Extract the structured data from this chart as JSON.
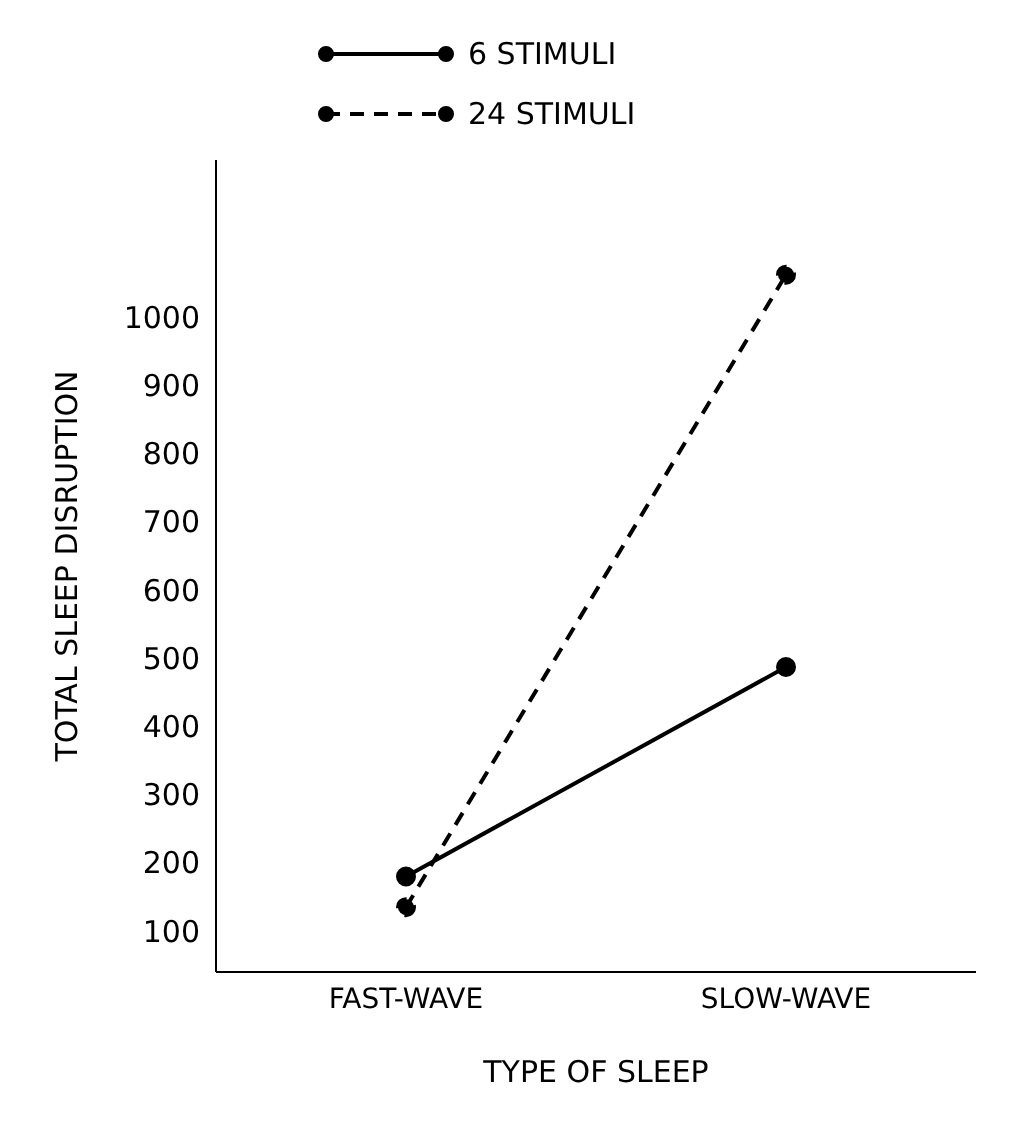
{
  "chart_data": {
    "type": "line",
    "xlabel": "TYPE OF SLEEP",
    "ylabel": "TOTAL SLEEP DISRUPTION",
    "categories": [
      "FAST-WAVE",
      "SLOW-WAVE"
    ],
    "series": [
      {
        "name": "6 STIMULI",
        "color": "#000000",
        "values": [
          180,
          487
        ],
        "line_style": "solid"
      },
      {
        "name": "24 STIMULI",
        "color": "#000000",
        "values": [
          135,
          1062
        ],
        "line_style": "dashed"
      }
    ],
    "ylim": [
      40,
      1230
    ],
    "yticks": [
      100,
      200,
      300,
      400,
      500,
      600,
      700,
      800,
      900,
      1000
    ],
    "grid": false,
    "legend": "top left",
    "marker": "circle"
  }
}
